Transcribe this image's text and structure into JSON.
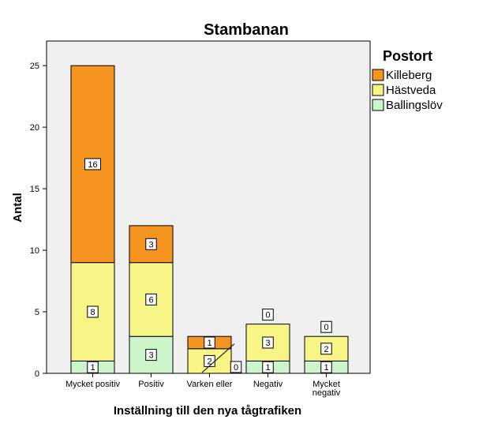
{
  "chart_data": {
    "type": "bar",
    "stacked": true,
    "title": "Stambanan",
    "xlabel": "Inställning till den nya tågtrafiken",
    "ylabel": "Antal",
    "ylim": [
      0,
      27
    ],
    "yticks": [
      0,
      5,
      10,
      15,
      20,
      25
    ],
    "grid": false,
    "legend_position": "right",
    "legend_title": "Postort",
    "categories": [
      [
        "Mycket positiv"
      ],
      [
        "Positiv"
      ],
      [
        "Varken eller"
      ],
      [
        "Negativ"
      ],
      [
        "Mycket",
        "negativ"
      ]
    ],
    "series": [
      {
        "name": "Ballingslöv",
        "color": "#ccf5cc",
        "values": [
          1,
          3,
          0,
          1,
          1
        ]
      },
      {
        "name": "Hästveda",
        "color": "#f7f586",
        "values": [
          8,
          6,
          2,
          3,
          2
        ]
      },
      {
        "name": "Killeberg",
        "color": "#f5941f",
        "values": [
          16,
          3,
          1,
          0,
          0
        ]
      }
    ],
    "legend_order": [
      "Killeberg",
      "Hästveda",
      "Ballingslöv"
    ]
  }
}
